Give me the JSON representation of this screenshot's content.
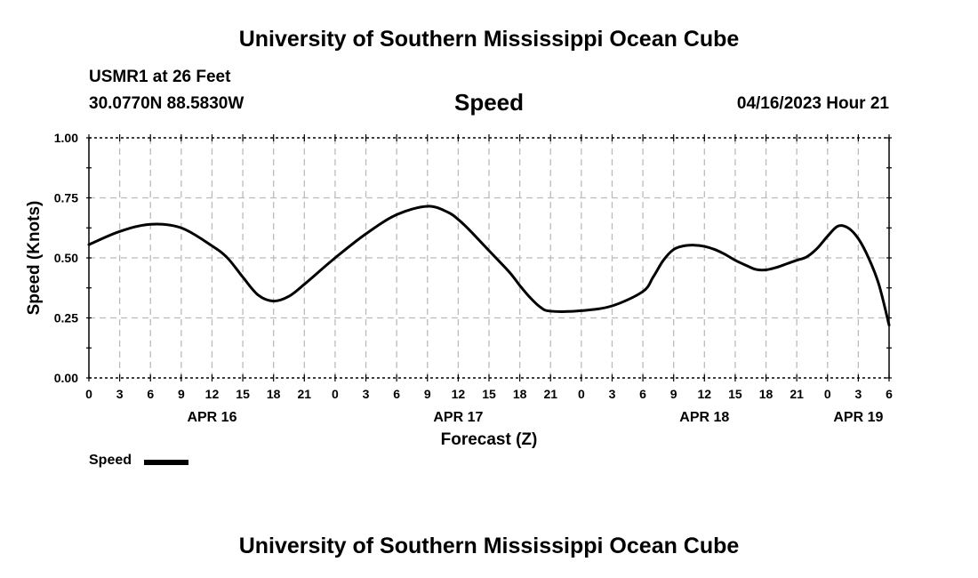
{
  "header": {
    "title": "University of Southern Mississippi Ocean Cube",
    "station": "USMR1 at 26 Feet",
    "coordinates": "30.0770N  88.5830W",
    "variable": "Speed",
    "datetime": "04/16/2023 Hour 21"
  },
  "footer": {
    "title": "University of Southern Mississippi Ocean Cube"
  },
  "legend": {
    "label": "Speed",
    "position": "bottom-left"
  },
  "chart_data": {
    "type": "line",
    "title": "Speed",
    "xlabel": "Forecast (Z)",
    "ylabel": "Speed (Knots)",
    "ylim": [
      0,
      1
    ],
    "xlim": [
      0,
      78
    ],
    "x_unit": "hours from APR 16 00Z",
    "grid": true,
    "y_ticks": [
      "0.00",
      "0.25",
      "0.50",
      "0.75",
      "1.00"
    ],
    "x_ticks": [
      "0",
      "3",
      "6",
      "9",
      "12",
      "15",
      "18",
      "21",
      "0",
      "3",
      "6",
      "9",
      "12",
      "15",
      "18",
      "21",
      "0",
      "3",
      "6",
      "9",
      "12",
      "15",
      "18",
      "21",
      "0",
      "3",
      "6"
    ],
    "date_labels": [
      {
        "label": "APR 16",
        "hour": 12
      },
      {
        "label": "APR 17",
        "hour": 36
      },
      {
        "label": "APR 18",
        "hour": 60
      },
      {
        "label": "APR 19",
        "hour": 75
      }
    ],
    "series": [
      {
        "name": "Speed",
        "color": "#000000",
        "x": [
          0,
          3,
          6,
          9,
          12,
          13.5,
          15,
          16.5,
          18,
          19.5,
          21,
          24,
          27,
          30,
          33,
          35,
          36,
          37,
          39,
          41,
          42,
          43,
          44,
          45,
          48,
          51,
          54,
          55,
          56,
          57,
          58,
          59,
          60,
          61,
          62,
          63,
          64,
          65,
          66,
          67,
          68,
          69,
          70,
          71,
          72,
          73,
          74,
          75,
          76,
          77,
          78
        ],
        "y": [
          0.555,
          0.61,
          0.64,
          0.625,
          0.55,
          0.5,
          0.42,
          0.345,
          0.32,
          0.34,
          0.39,
          0.5,
          0.6,
          0.68,
          0.715,
          0.69,
          0.66,
          0.62,
          0.53,
          0.44,
          0.385,
          0.335,
          0.295,
          0.278,
          0.28,
          0.3,
          0.36,
          0.42,
          0.49,
          0.535,
          0.55,
          0.553,
          0.548,
          0.535,
          0.515,
          0.49,
          0.47,
          0.452,
          0.45,
          0.46,
          0.475,
          0.49,
          0.505,
          0.54,
          0.59,
          0.632,
          0.625,
          0.58,
          0.5,
          0.39,
          0.22
        ]
      }
    ]
  }
}
